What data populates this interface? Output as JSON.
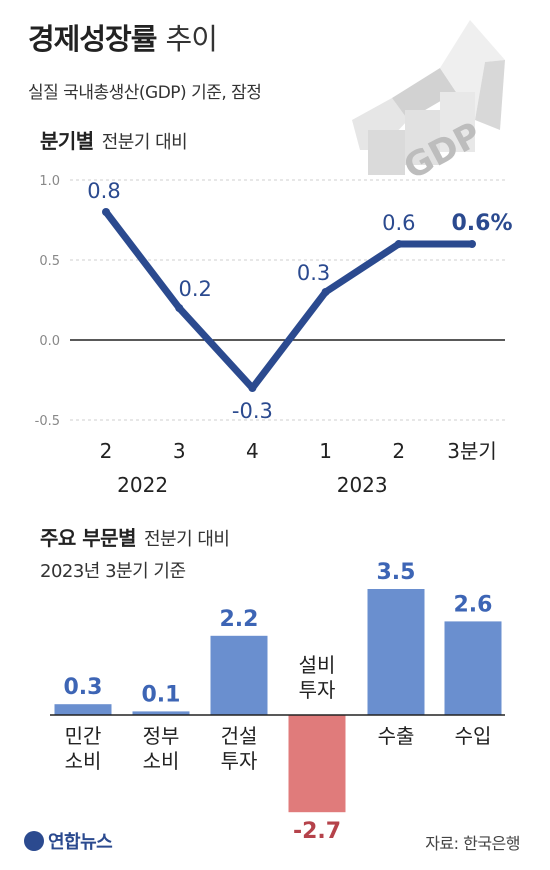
{
  "header": {
    "title": "경제성장률",
    "title_suffix": "추이",
    "subtitle": "실질 국내총생산(GDP) 기준, 잠정",
    "logo_text": "GDP"
  },
  "colors": {
    "line": "#2b4a8f",
    "bar_positive": "#6a8fcf",
    "bar_negative": "#e07b7b",
    "value_positive": "#3d65b5",
    "value_negative": "#b5424a"
  },
  "footer": {
    "logo": "연합뉴스",
    "source": "자료: 한국은행"
  },
  "chart_data": [
    {
      "type": "line",
      "title": "분기별",
      "note": "전분기 대비",
      "categories": [
        "2",
        "3",
        "4",
        "1",
        "2",
        "3분기"
      ],
      "year_labels": [
        {
          "label": "2022",
          "index": 0.5
        },
        {
          "label": "2023",
          "index": 3.5
        }
      ],
      "series": [
        {
          "values": [
            0.8,
            0.2,
            -0.3,
            0.3,
            0.6,
            0.6
          ]
        }
      ],
      "data_labels": [
        "0.8",
        "0.2",
        "-0.3",
        "0.3",
        "0.6",
        "0.6%"
      ],
      "y_ticks": [
        "1.0",
        "0.5",
        "0.0",
        "-0.5"
      ],
      "ylim": [
        -0.5,
        1.0
      ],
      "grid": "dashed"
    },
    {
      "type": "bar",
      "title": "주요 부문별",
      "note": "전분기 대비",
      "note2": "2023년 3분기 기준",
      "categories": [
        [
          "민간",
          "소비"
        ],
        [
          "정부",
          "소비"
        ],
        [
          "건설",
          "투자"
        ],
        [
          "설비",
          "투자"
        ],
        [
          "수출"
        ],
        [
          "수입"
        ]
      ],
      "values": [
        0.3,
        0.1,
        2.2,
        -2.7,
        3.5,
        2.6
      ],
      "data_labels": [
        "0.3",
        "0.1",
        "2.2",
        "-2.7",
        "3.5",
        "2.6"
      ]
    }
  ]
}
